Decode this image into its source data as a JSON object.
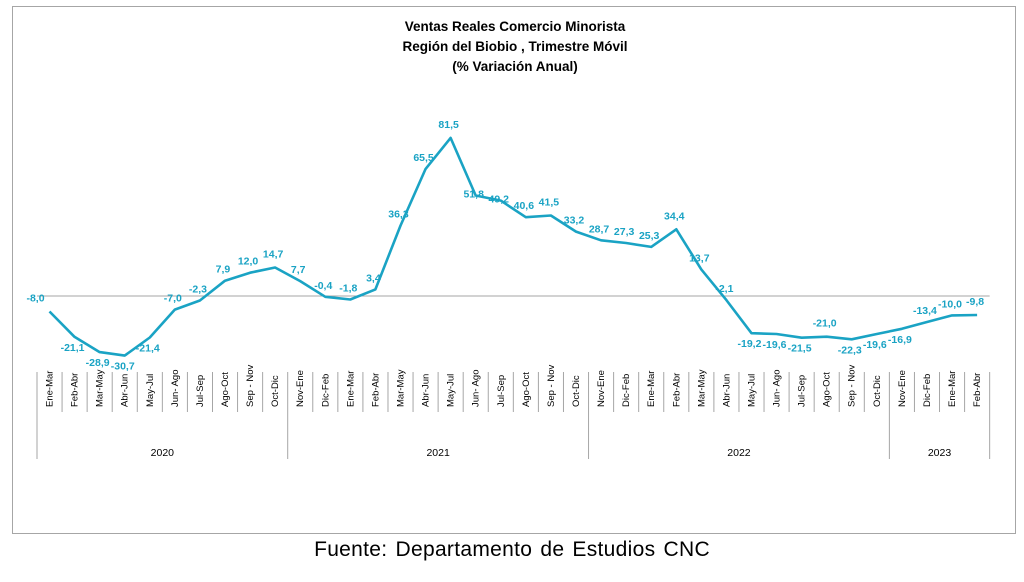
{
  "chart_data": {
    "type": "line",
    "title_lines": [
      "Ventas Reales Comercio Minorista",
      "Región del Biobio , Trimestre Móvil",
      "(% Variación Anual)"
    ],
    "categories": [
      "Ene-Mar",
      "Feb-Abr",
      "Mar-May",
      "Abr-Jun",
      "May-Jul",
      "Jun- Ago",
      "Jul-Sep",
      "Ago-Oct",
      "Sep - Nov",
      "Oct-Dic",
      "Nov-Ene",
      "Dic-Feb",
      "Ene-Mar",
      "Feb-Abr",
      "Mar-May",
      "Abr-Jun",
      "May-Jul",
      "Jun- Ago",
      "Jul-Sep",
      "Ago-Oct",
      "Sep - Nov",
      "Oct-Dic",
      "Nov-Ene",
      "Dic-Feb",
      "Ene-Mar",
      "Feb-Abr",
      "Mar-May",
      "Abr-Jun",
      "May-Jul",
      "Jun- Ago",
      "Jul-Sep",
      "Ago-Oct",
      "Sep - Nov",
      "Oct-Dic",
      "Nov-Ene",
      "Dic-Feb",
      "Ene-Mar",
      "Feb-Abr"
    ],
    "values": [
      -8.0,
      -21.1,
      -28.9,
      -30.7,
      -21.4,
      -7.0,
      -2.3,
      7.9,
      12.0,
      14.7,
      7.7,
      -0.4,
      -1.8,
      3.4,
      36.3,
      65.5,
      81.5,
      51.8,
      49.2,
      40.6,
      41.5,
      33.2,
      28.7,
      27.3,
      25.3,
      34.4,
      13.7,
      -2.1,
      -19.2,
      -19.6,
      -21.5,
      -21.0,
      -22.3,
      -19.6,
      -16.9,
      -13.4,
      -10.0,
      -9.8
    ],
    "labels": [
      "-8,0",
      "-21,1",
      "-28,9",
      "-30,7",
      "-21,4",
      "-7,0",
      "-2,3",
      "7,9",
      "12,0",
      "14,7",
      "7,7",
      "-0,4",
      "-1,8",
      "3,4",
      "36,3",
      "65,5",
      "81,5",
      "51,8",
      "49,2",
      "40,6",
      "41,5",
      "33,2",
      "28,7",
      "27,3",
      "25,3",
      "34,4",
      "13,7",
      "-2,1",
      "-19,2",
      "-19,6",
      "-21,5",
      "-21,0",
      "-22,3",
      "-19,6",
      "-16,9",
      "-13,4",
      "-10,0",
      "-9,8"
    ],
    "groups": [
      {
        "label": "2020",
        "count": 10
      },
      {
        "label": "2021",
        "count": 12
      },
      {
        "label": "2022",
        "count": 12
      },
      {
        "label": "2023",
        "count": 4
      }
    ],
    "ylim": [
      -40,
      90
    ],
    "grid": false,
    "legend": "none",
    "line_color": "#1aa3c4",
    "label_color": "#1aa3c4"
  },
  "caption": "Fuente: Departamento de Estudios CNC"
}
